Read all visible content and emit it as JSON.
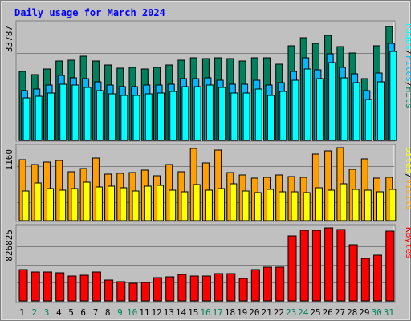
{
  "chart_data": {
    "type": "bar",
    "title": "Daily usage for March 2024",
    "categories": [
      "1",
      "2",
      "3",
      "4",
      "5",
      "6",
      "7",
      "8",
      "9",
      "10",
      "11",
      "12",
      "13",
      "14",
      "15",
      "16",
      "17",
      "18",
      "19",
      "20",
      "21",
      "22",
      "23",
      "24",
      "25",
      "26",
      "27",
      "28",
      "29",
      "30",
      "31"
    ],
    "weekend_days": [
      "2",
      "3",
      "9",
      "10",
      "16",
      "17",
      "23",
      "24",
      "30",
      "31"
    ],
    "panels": [
      {
        "id": "hits-panel",
        "max_label": "33787",
        "ymax": 33787,
        "legend": [
          "Hits",
          "/",
          "Files",
          "/",
          "Pages"
        ],
        "series": [
          {
            "name": "Hits",
            "color": "#00805c",
            "values": [
              20040,
              19000,
              20770,
              22990,
              23360,
              24500,
              22990,
              21870,
              20960,
              21140,
              20770,
              21140,
              21880,
              23350,
              24090,
              23720,
              24090,
              23720,
              22980,
              24090,
              24090,
              22250,
              27560,
              29780,
              28300,
              30520,
              27200,
              25340,
              17900,
              27560,
              33000
            ]
          },
          {
            "name": "Files",
            "color": "#00b8ff",
            "values": [
              14540,
              14910,
              16020,
              18960,
              18220,
              17850,
              17110,
              16020,
              15650,
              15650,
              16020,
              16020,
              16390,
              17850,
              17860,
              18220,
              17490,
              16390,
              16390,
              17490,
              16020,
              16760,
              20060,
              24090,
              20430,
              25200,
              21140,
              19330,
              14500,
              19670,
              28300
            ]
          },
          {
            "name": "Pages",
            "color": "#00ffff",
            "values": [
              12340,
              12700,
              13800,
              16380,
              16010,
              15270,
              14540,
              13440,
              13070,
              13070,
              13440,
              13800,
              14170,
              15640,
              15640,
              16010,
              15270,
              13800,
              13800,
              14910,
              13070,
              14170,
              17480,
              20770,
              17850,
              22620,
              18220,
              16760,
              11950,
              17120,
              25800
            ]
          }
        ]
      },
      {
        "id": "visits-panel",
        "max_label": "1160",
        "ymax": 1160,
        "legend": [
          "Visits",
          "/",
          "Sites"
        ],
        "series": [
          {
            "name": "Visits",
            "color": "#ffa000",
            "values": [
              970,
              890,
              930,
              960,
              780,
              830,
              990,
              740,
              750,
              760,
              800,
              710,
              890,
              780,
              1150,
              920,
              1120,
              760,
              730,
              680,
              690,
              730,
              700,
              690,
              1060,
              1110,
              1160,
              820,
              980,
              670,
              690
            ]
          },
          {
            "name": "Sites",
            "color": "#ffff00",
            "values": [
              470,
              600,
              510,
              480,
              510,
              610,
              530,
              550,
              520,
              470,
              550,
              560,
              480,
              460,
              570,
              480,
              510,
              590,
              470,
              450,
              500,
              460,
              460,
              450,
              520,
              490,
              590,
              500,
              480,
              460,
              500
            ]
          }
        ]
      },
      {
        "id": "kbytes-panel",
        "max_label": "826825",
        "ymax": 826825,
        "legend": [
          "KBytes"
        ],
        "series": [
          {
            "name": "KBytes",
            "color": "#ff0000",
            "values": [
              350000,
              330000,
              330000,
              320000,
              280000,
              290000,
              330000,
              240000,
              220000,
              200000,
              210000,
              260000,
              270000,
              300000,
              280000,
              280000,
              310000,
              310000,
              250000,
              350000,
              380000,
              380000,
              740000,
              800000,
              800000,
              830000,
              810000,
              640000,
              480000,
              520000,
              790000
            ]
          }
        ]
      }
    ]
  }
}
